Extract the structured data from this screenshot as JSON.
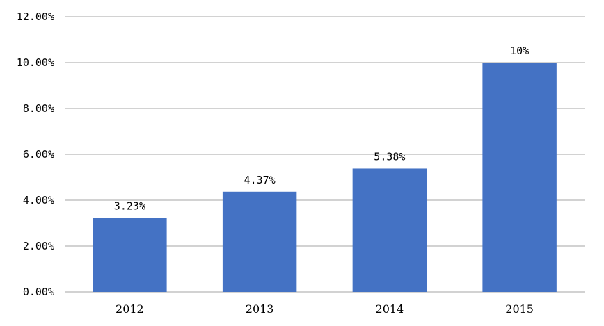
{
  "chart_data": {
    "type": "bar",
    "categories": [
      "2012",
      "2013",
      "2014",
      "2015"
    ],
    "values": [
      3.23,
      4.37,
      5.38,
      10
    ],
    "data_labels": [
      "3.23%",
      "4.37%",
      "5.38%",
      "10%"
    ],
    "y_ticks": [
      "0.00%",
      "2.00%",
      "4.00%",
      "6.00%",
      "8.00%",
      "10.00%",
      "12.00%"
    ],
    "y_tick_values": [
      0,
      2,
      4,
      6,
      8,
      10,
      12
    ],
    "ylim": [
      0,
      12
    ],
    "title": "",
    "xlabel": "",
    "ylabel": "",
    "grid": true,
    "legend": "none",
    "bar_color": "#4472C4",
    "grid_color": "#A6A6A6"
  }
}
